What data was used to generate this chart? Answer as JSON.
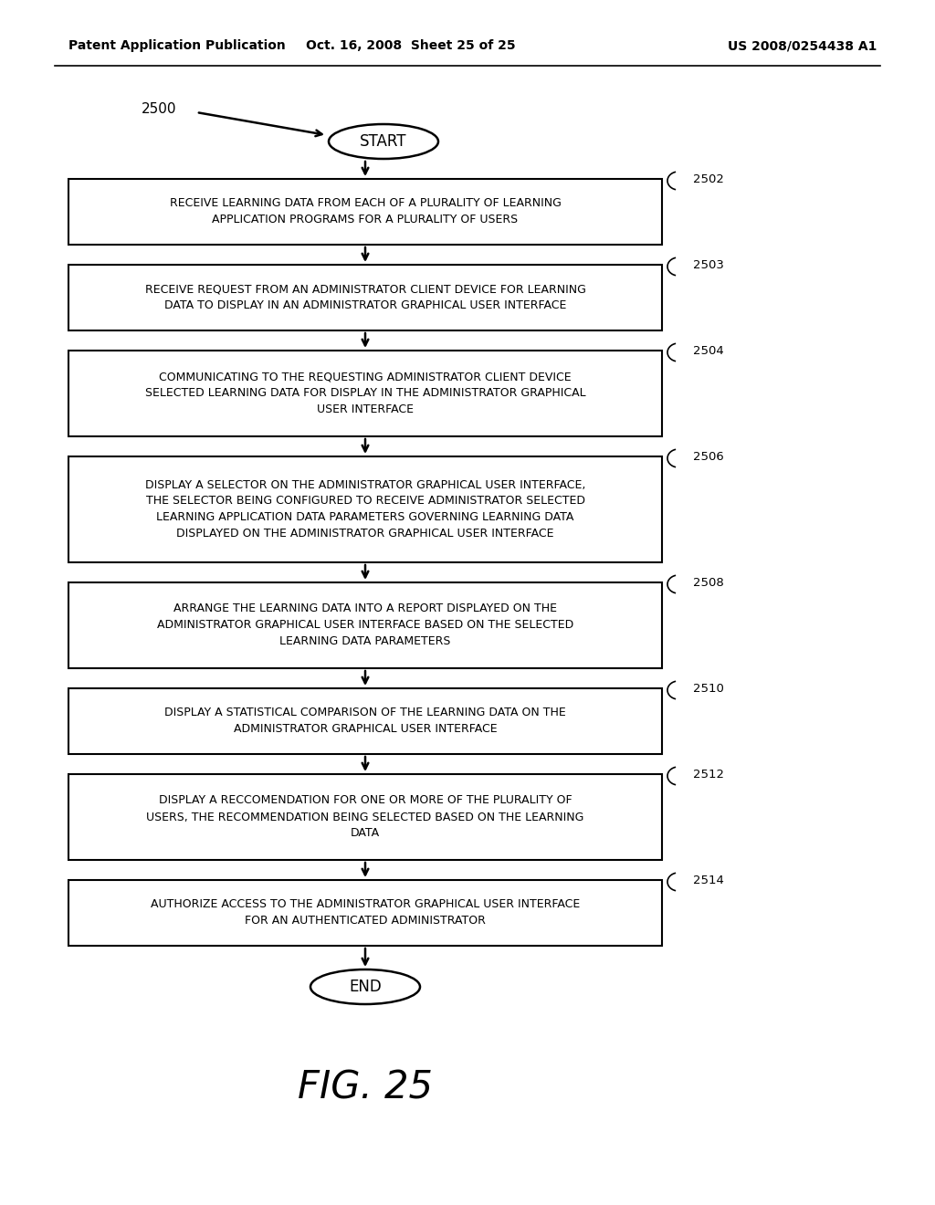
{
  "header_left": "Patent Application Publication",
  "header_mid": "Oct. 16, 2008  Sheet 25 of 25",
  "header_right": "US 2008/0254438 A1",
  "diagram_label": "2500",
  "fig_label": "FIG. 25",
  "start_label": "START",
  "end_label": "END",
  "boxes": [
    {
      "id": "2502",
      "label": "RECEIVE LEARNING DATA FROM EACH OF A PLURALITY OF LEARNING\nAPPLICATION PROGRAMS FOR A PLURALITY OF USERS",
      "n_lines": 2
    },
    {
      "id": "2503",
      "label": "RECEIVE REQUEST FROM AN ADMINISTRATOR CLIENT DEVICE FOR LEARNING\nDATA TO DISPLAY IN AN ADMINISTRATOR GRAPHICAL USER INTERFACE",
      "n_lines": 2
    },
    {
      "id": "2504",
      "label": "COMMUNICATING TO THE REQUESTING ADMINISTRATOR CLIENT DEVICE\nSELECTED LEARNING DATA FOR DISPLAY IN THE ADMINISTRATOR GRAPHICAL\nUSER INTERFACE",
      "n_lines": 3
    },
    {
      "id": "2506",
      "label": "DISPLAY A SELECTOR ON THE ADMINISTRATOR GRAPHICAL USER INTERFACE,\nTHE SELECTOR BEING CONFIGURED TO RECEIVE ADMINISTRATOR SELECTED\nLEARNING APPLICATION DATA PARAMETERS GOVERNING LEARNING DATA\nDISPLAYED ON THE ADMINISTRATOR GRAPHICAL USER INTERFACE",
      "n_lines": 4
    },
    {
      "id": "2508",
      "label": "ARRANGE THE LEARNING DATA INTO A REPORT DISPLAYED ON THE\nADMINISTRATOR GRAPHICAL USER INTERFACE BASED ON THE SELECTED\nLEARNING DATA PARAMETERS",
      "n_lines": 3
    },
    {
      "id": "2510",
      "label": "DISPLAY A STATISTICAL COMPARISON OF THE LEARNING DATA ON THE\nADMINISTRATOR GRAPHICAL USER INTERFACE",
      "n_lines": 2
    },
    {
      "id": "2512",
      "label": "DISPLAY A RECCOMENDATION FOR ONE OR MORE OF THE PLURALITY OF\nUSERS, THE RECOMMENDATION BEING SELECTED BASED ON THE LEARNING\nDATA",
      "n_lines": 3
    },
    {
      "id": "2514",
      "label": "AUTHORIZE ACCESS TO THE ADMINISTRATOR GRAPHICAL USER INTERFACE\nFOR AN AUTHENTICATED ADMINISTRATOR",
      "n_lines": 2
    }
  ],
  "background_color": "#ffffff",
  "box_edge_color": "#000000",
  "text_color": "#000000"
}
